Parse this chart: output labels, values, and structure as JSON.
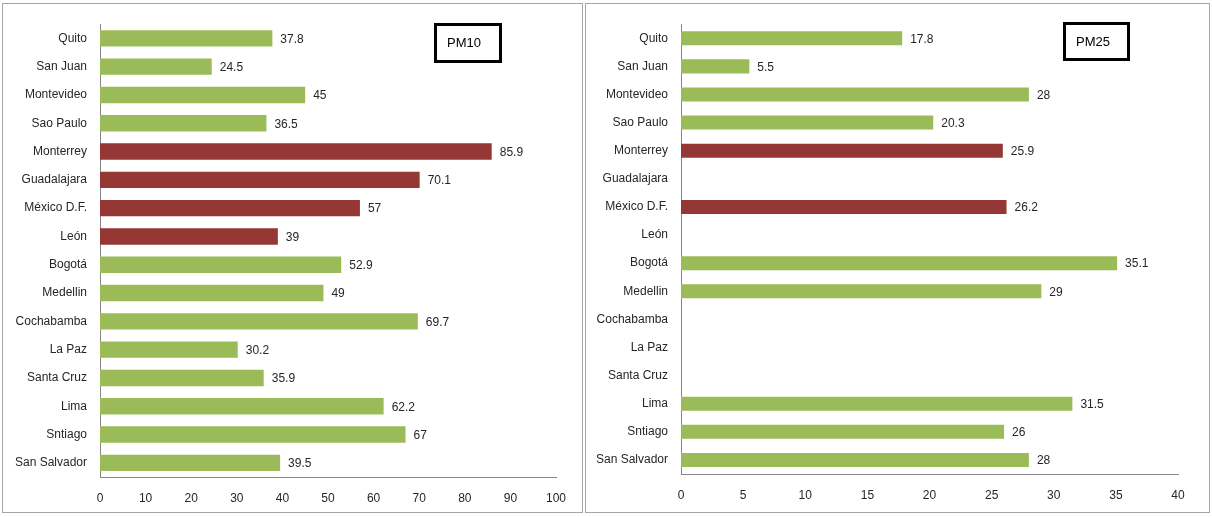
{
  "chart_data": [
    {
      "type": "bar",
      "orientation": "horizontal",
      "title": "PM10",
      "categories": [
        "Quito",
        "San Juan",
        "Montevideo",
        "Sao Paulo",
        "Monterrey",
        "Guadalajara",
        "México D.F.",
        "León",
        "Bogotá",
        "Medellin",
        "Cochabamba",
        "La Paz",
        "Santa Cruz",
        "Lima",
        "Sntiago",
        "San Salvador"
      ],
      "values": [
        37.8,
        24.5,
        45,
        36.5,
        85.9,
        70.1,
        57,
        39,
        52.9,
        49,
        69.7,
        30.2,
        35.9,
        62.2,
        67,
        39.5
      ],
      "colors": [
        "#9bbb59",
        "#9bbb59",
        "#9bbb59",
        "#9bbb59",
        "#953735",
        "#953735",
        "#953735",
        "#953735",
        "#9bbb59",
        "#9bbb59",
        "#9bbb59",
        "#9bbb59",
        "#9bbb59",
        "#9bbb59",
        "#9bbb59",
        "#9bbb59"
      ],
      "xlim": [
        0,
        100
      ],
      "xticks": [
        0,
        10,
        20,
        30,
        40,
        50,
        60,
        70,
        80,
        90,
        100
      ],
      "data_labels": true
    },
    {
      "type": "bar",
      "orientation": "horizontal",
      "title": "PM25",
      "categories": [
        "Quito",
        "San Juan",
        "Montevideo",
        "Sao Paulo",
        "Monterrey",
        "Guadalajara",
        "México D.F.",
        "León",
        "Bogotá",
        "Medellin",
        "Cochabamba",
        "La Paz",
        "Santa Cruz",
        "Lima",
        "Sntiago",
        "San Salvador"
      ],
      "values": [
        17.8,
        5.5,
        28,
        20.3,
        25.9,
        null,
        26.2,
        null,
        35.1,
        29,
        null,
        null,
        null,
        31.5,
        26,
        28
      ],
      "colors": [
        "#9bbb59",
        "#9bbb59",
        "#9bbb59",
        "#9bbb59",
        "#953735",
        "#953735",
        "#953735",
        "#953735",
        "#9bbb59",
        "#9bbb59",
        "#9bbb59",
        "#9bbb59",
        "#9bbb59",
        "#9bbb59",
        "#9bbb59",
        "#9bbb59"
      ],
      "xlim": [
        0,
        40
      ],
      "xticks": [
        0,
        5,
        10,
        15,
        20,
        25,
        30,
        35,
        40
      ],
      "data_labels": true
    }
  ]
}
